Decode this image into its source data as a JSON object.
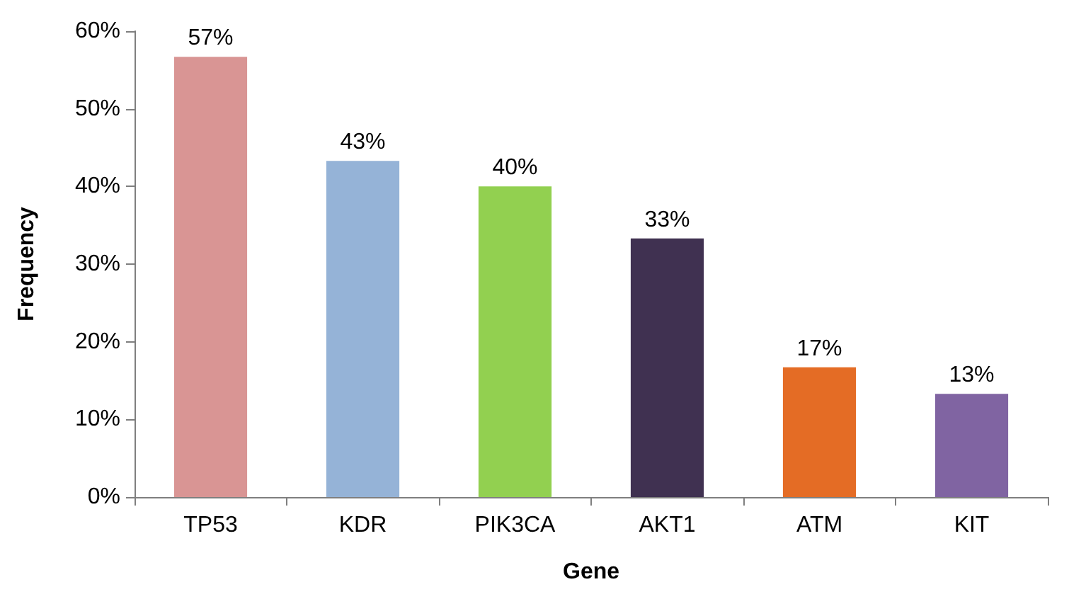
{
  "chart_data": {
    "type": "bar",
    "xlabel": "Gene",
    "ylabel": "Frequency",
    "categories": [
      "TP53",
      "KDR",
      "PIK3CA",
      "AKT1",
      "ATM",
      "KIT"
    ],
    "values": [
      56.7,
      43.3,
      40,
      33.3,
      16.7,
      13.3
    ],
    "colors": [
      "#d99594",
      "#95b3d7",
      "#92d050",
      "#403151",
      "#e46c25",
      "#8064a2"
    ],
    "value_labels": [
      "57%",
      "43%",
      "40%",
      "33%",
      "17%",
      "13%"
    ],
    "ylim": [
      0,
      60
    ],
    "yticks": [
      {
        "value": 0,
        "label": "0%"
      },
      {
        "value": 10,
        "label": "10%"
      },
      {
        "value": 20,
        "label": "20%"
      },
      {
        "value": 30,
        "label": "30%"
      },
      {
        "value": 40,
        "label": "40%"
      },
      {
        "value": 50,
        "label": "50%"
      },
      {
        "value": 60,
        "label": "60%"
      }
    ],
    "grid": false
  }
}
